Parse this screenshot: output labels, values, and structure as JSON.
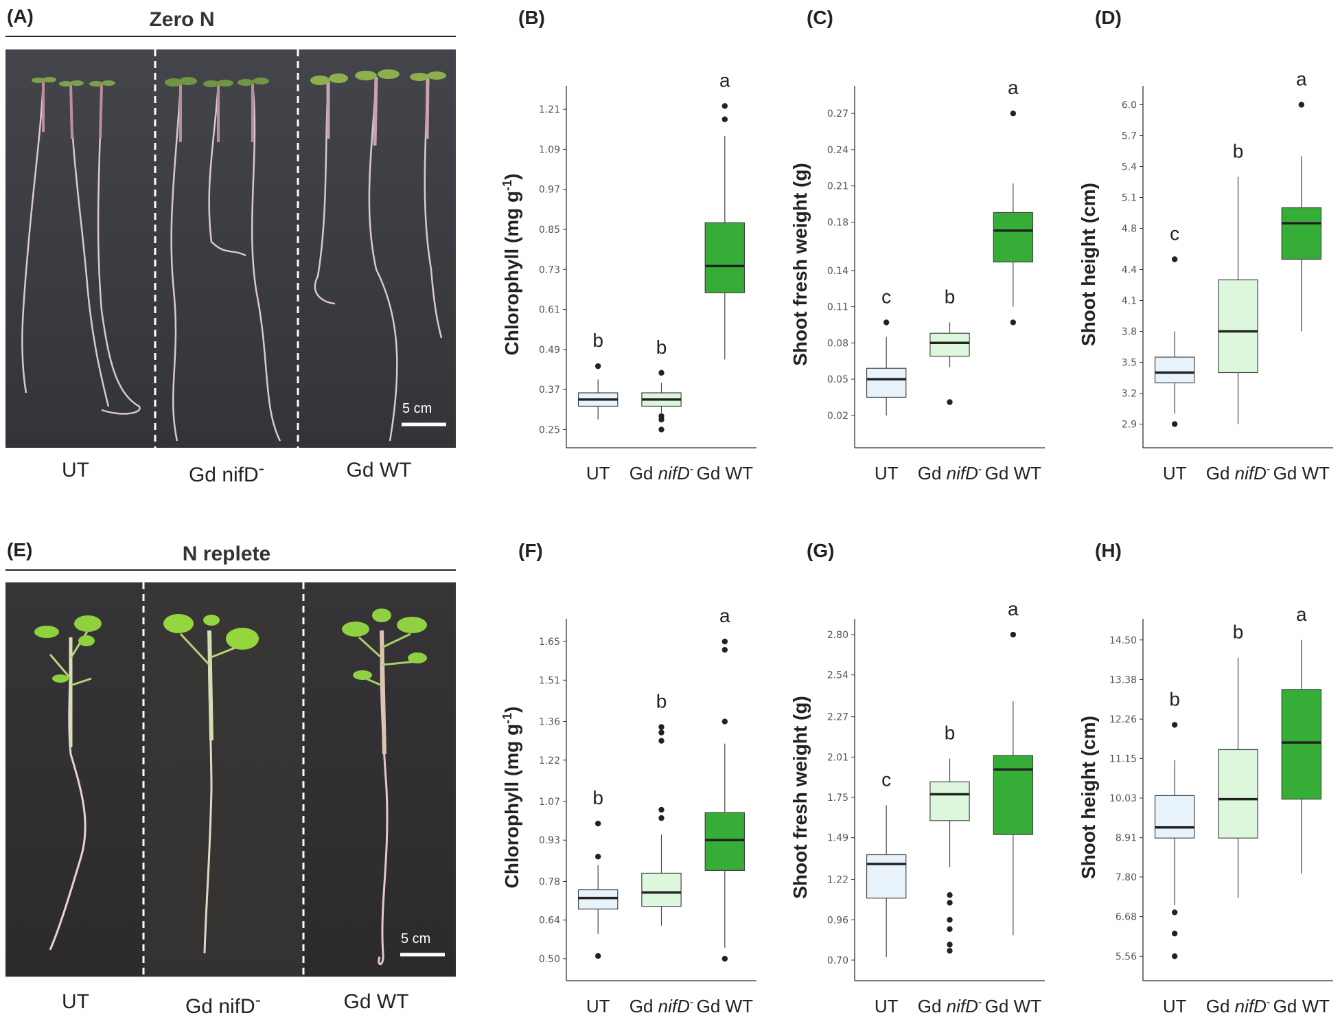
{
  "colors": {
    "ut": "#e8f3fb",
    "nifd": "#dcf7dc",
    "wt": "#36ad36",
    "photo_top": "#3c3d42",
    "photo_bottom": "#2f2e30"
  },
  "top": {
    "panel": "(A)",
    "condition": "Zero N",
    "scale_bar": "5 cm",
    "labels": [
      "UT",
      "Gd nifD",
      "Gd WT"
    ]
  },
  "bottom": {
    "panel": "(E)",
    "condition": "N replete",
    "scale_bar": "5 cm",
    "labels": [
      "UT",
      "Gd nifD",
      "Gd WT"
    ]
  },
  "chart_data": [
    {
      "panel": "(B)",
      "type": "box",
      "ylabel": "Chlorophyll (mg g-1)",
      "categories": [
        "UT",
        "Gd nifD-",
        "Gd WT"
      ],
      "yticks": [
        "0.25",
        "0.37",
        "0.49",
        "0.61",
        "0.73",
        "0.85",
        "0.97",
        "1.09",
        "1.21"
      ],
      "ylim": [
        0.22,
        1.27
      ],
      "boxes": [
        {
          "min": 0.28,
          "q1": 0.32,
          "median": 0.34,
          "q3": 0.36,
          "max": 0.4,
          "outliers": [
            0.44
          ],
          "letter": "b"
        },
        {
          "min": 0.3,
          "q1": 0.32,
          "median": 0.34,
          "q3": 0.36,
          "max": 0.39,
          "outliers": [
            0.42,
            0.29,
            0.28,
            0.25
          ],
          "letter": "b"
        },
        {
          "min": 0.46,
          "q1": 0.66,
          "median": 0.74,
          "q3": 0.87,
          "max": 1.13,
          "outliers": [
            1.18,
            1.22
          ],
          "letter": "a"
        }
      ]
    },
    {
      "panel": "(C)",
      "type": "box",
      "ylabel": "Shoot fresh weight (g)",
      "categories": [
        "UT",
        "Gd nifD-",
        "Gd WT"
      ],
      "yticks": [
        "0.02",
        "0.05",
        "0.08",
        "0.11",
        "0.14",
        "0.18",
        "0.21",
        "0.24",
        "0.27"
      ],
      "ylim": [
        0.0,
        0.29
      ],
      "boxes": [
        {
          "min": 0.02,
          "q1": 0.035,
          "median": 0.05,
          "q3": 0.059,
          "max": 0.085,
          "outliers": [
            0.097
          ],
          "letter": "c"
        },
        {
          "min": 0.06,
          "q1": 0.069,
          "median": 0.08,
          "q3": 0.088,
          "max": 0.097,
          "outliers": [
            0.031
          ],
          "letter": "b"
        },
        {
          "min": 0.11,
          "q1": 0.147,
          "median": 0.173,
          "q3": 0.188,
          "max": 0.212,
          "outliers": [
            0.097,
            0.27
          ],
          "letter": "a"
        }
      ]
    },
    {
      "panel": "(D)",
      "type": "box",
      "ylabel": "Shoot height (cm)",
      "categories": [
        "UT",
        "Gd nifD-",
        "Gd WT"
      ],
      "yticks": [
        "2.9",
        "3.2",
        "3.5",
        "3.8",
        "4.1",
        "4.4",
        "4.8",
        "5.1",
        "5.4",
        "5.7",
        "6.0"
      ],
      "ylim": [
        2.75,
        6.15
      ],
      "boxes": [
        {
          "min": 3.0,
          "q1": 3.3,
          "median": 3.4,
          "q3": 3.55,
          "max": 3.8,
          "outliers": [
            4.5,
            2.9
          ],
          "letter": "c"
        },
        {
          "min": 2.9,
          "q1": 3.4,
          "median": 3.8,
          "q3": 4.3,
          "max": 5.3,
          "outliers": [],
          "letter": "b"
        },
        {
          "min": 3.8,
          "q1": 4.5,
          "median": 4.85,
          "q3": 5.0,
          "max": 5.5,
          "outliers": [
            6.0
          ],
          "letter": "a"
        }
      ]
    },
    {
      "panel": "(F)",
      "type": "box",
      "ylabel": "Chlorophyll (mg g-1)",
      "categories": [
        "UT",
        "Gd nifD-",
        "Gd WT"
      ],
      "yticks": [
        "0.50",
        "0.64",
        "0.78",
        "0.93",
        "1.07",
        "1.22",
        "1.36",
        "1.51",
        "1.65"
      ],
      "ylim": [
        0.45,
        1.72
      ],
      "boxes": [
        {
          "min": 0.59,
          "q1": 0.68,
          "median": 0.72,
          "q3": 0.75,
          "max": 0.84,
          "outliers": [
            0.51,
            0.87,
            0.99
          ],
          "letter": "b"
        },
        {
          "min": 0.62,
          "q1": 0.69,
          "median": 0.74,
          "q3": 0.81,
          "max": 0.95,
          "outliers": [
            1.01,
            1.04,
            1.29,
            1.32,
            1.34
          ],
          "letter": "b"
        },
        {
          "min": 0.54,
          "q1": 0.82,
          "median": 0.93,
          "q3": 1.03,
          "max": 1.28,
          "outliers": [
            0.5,
            1.36,
            1.62,
            1.65
          ],
          "letter": "a"
        }
      ]
    },
    {
      "panel": "(G)",
      "type": "box",
      "ylabel": "Shoot fresh weight (g)",
      "categories": [
        "UT",
        "Gd nifD-",
        "Gd WT"
      ],
      "yticks": [
        "0.70",
        "0.96",
        "1.22",
        "1.49",
        "1.75",
        "2.01",
        "2.27",
        "2.54",
        "2.80"
      ],
      "ylim": [
        0.62,
        2.88
      ],
      "boxes": [
        {
          "min": 0.72,
          "q1": 1.1,
          "median": 1.32,
          "q3": 1.38,
          "max": 1.7,
          "outliers": [],
          "letter": "c"
        },
        {
          "min": 1.3,
          "q1": 1.6,
          "median": 1.77,
          "q3": 1.85,
          "max": 2.0,
          "outliers": [
            0.76,
            0.8,
            0.9,
            0.96,
            1.07,
            1.12
          ],
          "letter": "b"
        },
        {
          "min": 0.86,
          "q1": 1.51,
          "median": 1.93,
          "q3": 2.02,
          "max": 2.37,
          "outliers": [
            2.8
          ],
          "letter": "a"
        }
      ]
    },
    {
      "panel": "(H)",
      "type": "box",
      "ylabel": "Shoot height (cm)",
      "categories": [
        "UT",
        "Gd nifD-",
        "Gd WT"
      ],
      "yticks": [
        "5.56",
        "6.68",
        "7.80",
        "8.91",
        "10.03",
        "11.15",
        "12.26",
        "13.38",
        "14.50"
      ],
      "ylim": [
        5.1,
        15.0
      ],
      "boxes": [
        {
          "min": 7.0,
          "q1": 8.9,
          "median": 9.2,
          "q3": 10.1,
          "max": 11.1,
          "outliers": [
            5.56,
            6.2,
            6.8,
            12.1
          ],
          "letter": "b"
        },
        {
          "min": 7.2,
          "q1": 8.9,
          "median": 10.0,
          "q3": 11.4,
          "max": 14.0,
          "outliers": [],
          "letter": "b"
        },
        {
          "min": 7.9,
          "q1": 10.0,
          "median": 11.6,
          "q3": 13.1,
          "max": 14.5,
          "outliers": [],
          "letter": "a"
        }
      ]
    }
  ]
}
